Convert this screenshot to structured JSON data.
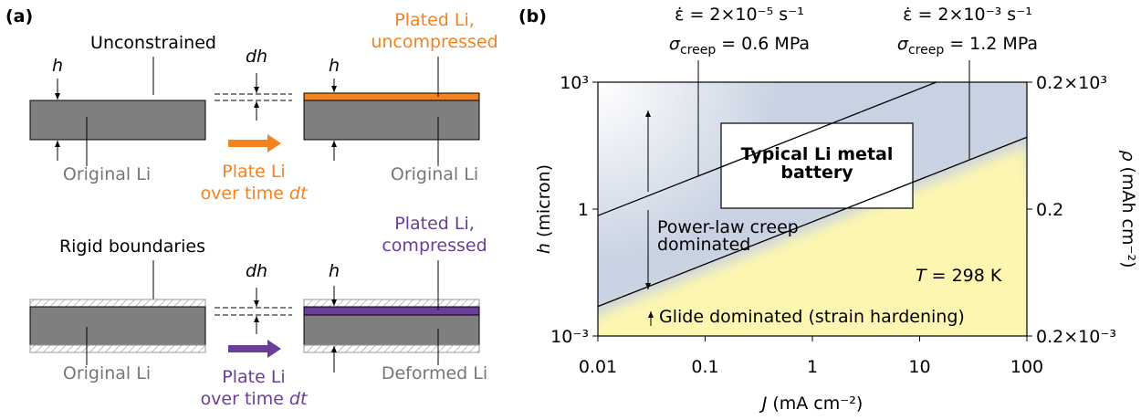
{
  "panel_a": {
    "label": "(a)",
    "top": {
      "title": "Unconstrained",
      "h_left": "h",
      "dh": "dh",
      "h_right": "h",
      "plated": [
        "Plated Li,",
        "uncompressed"
      ],
      "left_label": "Original Li",
      "process": [
        "Plate Li",
        "over time",
        "dt"
      ],
      "right_label": "Original Li"
    },
    "bottom": {
      "title": "Rigid boundaries",
      "dh": "dh",
      "h_right": "h",
      "plated": [
        "Plated Li,",
        "compressed"
      ],
      "left_label": "Original Li",
      "process": [
        "Plate Li",
        "over time",
        "dt"
      ],
      "right_label": "Deformed Li"
    }
  },
  "chart_data": {
    "type": "line",
    "panel_label": "(b)",
    "xlabel": [
      "J",
      "(mA cm⁻²)"
    ],
    "ylabel": [
      "h",
      "(micron)"
    ],
    "y2label": [
      "ρ",
      "(mAh cm⁻²)"
    ],
    "xscale": "log",
    "yscale": "log",
    "xlim": [
      0.01,
      100
    ],
    "xticks": [
      0.01,
      0.1,
      1,
      10,
      100
    ],
    "ylim": [
      0.001,
      1000
    ],
    "yticks": [
      {
        "value": 0.001,
        "label": "10⁻³"
      },
      1,
      {
        "value": 1000,
        "label": "10³"
      }
    ],
    "y2lim": [
      0.0002,
      200
    ],
    "y2ticks": [
      {
        "value": 0.0002,
        "label": "0.2×10⁻³"
      },
      0.2,
      {
        "value": 200,
        "label": "0.2×10³"
      }
    ],
    "series": [
      {
        "rate": "ε̇ = 2×10⁻⁵ s⁻¹",
        "stress": [
          "σ",
          "creep",
          "= 0.6 MPa"
        ],
        "color": "#000000",
        "x": [
          0.01,
          14.3
        ],
        "values": [
          0.7,
          1000
        ]
      },
      {
        "rate": "ε̇ = 2×10⁻³ s⁻¹",
        "stress": [
          "σ",
          "creep",
          "= 1.2 MPa"
        ],
        "color": "#000000",
        "x": [
          0.01,
          100
        ],
        "values": [
          0.005,
          50
        ]
      }
    ],
    "annotations": {
      "battery": [
        "Typical Li metal",
        "battery"
      ],
      "creep": [
        "Power-law creep",
        "dominated"
      ],
      "temperature": [
        "T",
        "= 298 K"
      ],
      "glide": "Glide dominated (strain hardening)"
    }
  }
}
